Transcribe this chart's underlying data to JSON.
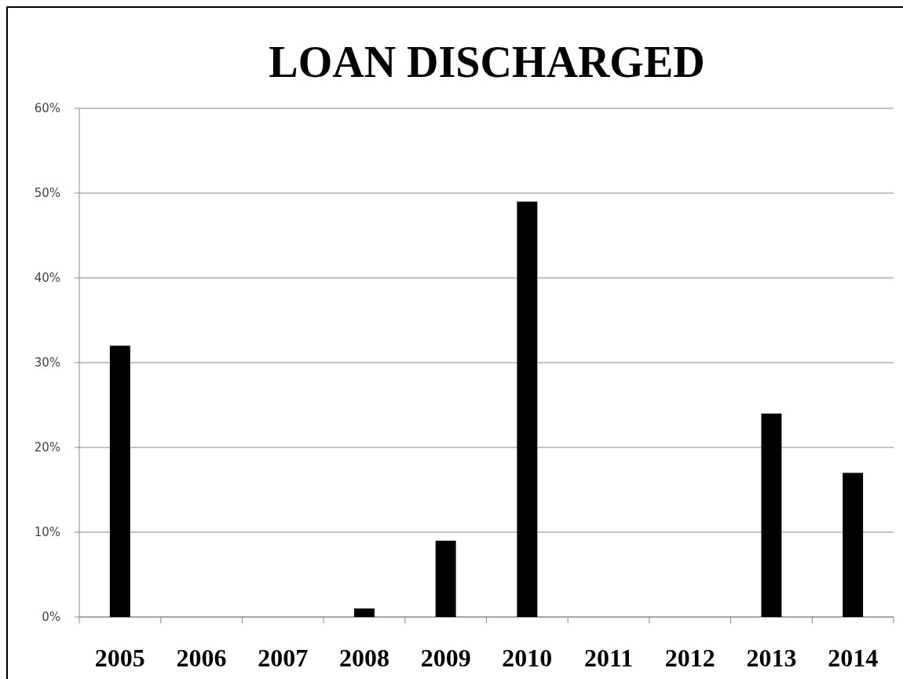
{
  "chart_data": {
    "type": "bar",
    "title": "LOAN DISCHARGED",
    "categories": [
      "2005",
      "2006",
      "2007",
      "2008",
      "2009",
      "2010",
      "2011",
      "2012",
      "2013",
      "2014"
    ],
    "values": [
      32,
      0,
      0,
      1,
      9,
      49,
      0,
      0,
      24,
      17
    ],
    "color": "#000000",
    "ylim": [
      0,
      60
    ],
    "yticks": [
      {
        "value": 0,
        "label": "0%"
      },
      {
        "value": 10,
        "label": "10%"
      },
      {
        "value": 20,
        "label": "20%"
      },
      {
        "value": 30,
        "label": "30%"
      },
      {
        "value": 40,
        "label": "40%"
      },
      {
        "value": 50,
        "label": "50%"
      },
      {
        "value": 60,
        "label": "60%"
      }
    ],
    "grid": "y"
  }
}
